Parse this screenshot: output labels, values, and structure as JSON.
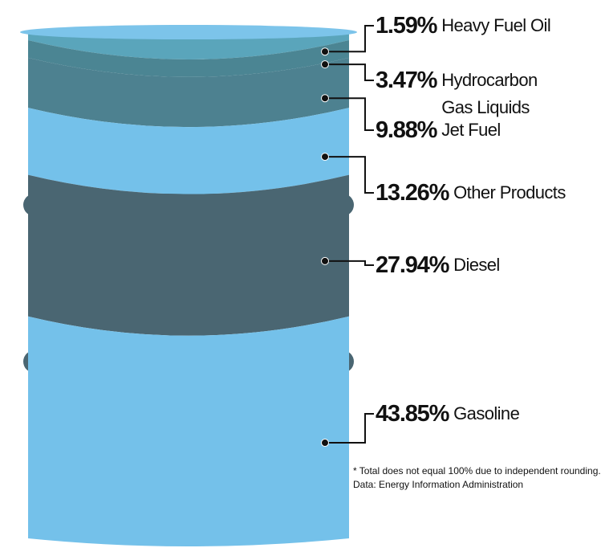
{
  "chart_data": {
    "type": "barrel",
    "categories": [
      "Heavy Fuel Oil",
      "Hydrocarbon Gas Liquids",
      "Jet Fuel",
      "Other Products",
      "Diesel",
      "Gasoline"
    ],
    "values": [
      1.59,
      3.47,
      9.88,
      13.26,
      27.94,
      43.85
    ],
    "value_labels": [
      "1.59%",
      "3.47%",
      "9.88%",
      "13.26%",
      "27.94%",
      "43.85%"
    ],
    "colors": [
      "#5aa5bb",
      "#4b8593",
      "#4d8190",
      "#74c1ea",
      "#4a6672",
      "#74c1ea"
    ],
    "notes": [
      "* Total does not equal 100% due to independent rounding.",
      "Data: Energy Information Administration"
    ]
  }
}
